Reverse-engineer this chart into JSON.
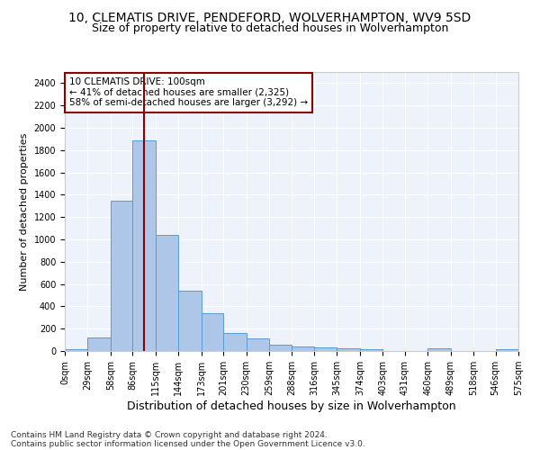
{
  "title1": "10, CLEMATIS DRIVE, PENDEFORD, WOLVERHAMPTON, WV9 5SD",
  "title2": "Size of property relative to detached houses in Wolverhampton",
  "xlabel": "Distribution of detached houses by size in Wolverhampton",
  "ylabel": "Number of detached properties",
  "bar_values": [
    15,
    125,
    1350,
    1890,
    1040,
    540,
    335,
    165,
    110,
    60,
    40,
    30,
    25,
    15,
    0,
    0,
    25,
    0,
    0,
    15
  ],
  "bar_left_edges": [
    0,
    29,
    58,
    86,
    115,
    144,
    173,
    201,
    230,
    259,
    288,
    316,
    345,
    374,
    403,
    431,
    460,
    489,
    518,
    546
  ],
  "bar_widths": [
    29,
    29,
    28,
    29,
    29,
    29,
    28,
    29,
    29,
    29,
    28,
    29,
    29,
    29,
    28,
    29,
    29,
    29,
    28,
    29
  ],
  "xtick_labels": [
    "0sqm",
    "29sqm",
    "58sqm",
    "86sqm",
    "115sqm",
    "144sqm",
    "173sqm",
    "201sqm",
    "230sqm",
    "259sqm",
    "288sqm",
    "316sqm",
    "345sqm",
    "374sqm",
    "403sqm",
    "431sqm",
    "460sqm",
    "489sqm",
    "518sqm",
    "546sqm",
    "575sqm"
  ],
  "xtick_positions": [
    0,
    29,
    58,
    86,
    115,
    144,
    173,
    201,
    230,
    259,
    288,
    316,
    345,
    374,
    403,
    431,
    460,
    489,
    518,
    546,
    575
  ],
  "ytick_labels": [
    "0",
    "200",
    "400",
    "600",
    "800",
    "1000",
    "1200",
    "1400",
    "1600",
    "1800",
    "2000",
    "2200",
    "2400"
  ],
  "ytick_values": [
    0,
    200,
    400,
    600,
    800,
    1000,
    1200,
    1400,
    1600,
    1800,
    2000,
    2200,
    2400
  ],
  "ylim": [
    0,
    2500
  ],
  "xlim": [
    0,
    575
  ],
  "bar_color": "#aec6e8",
  "bar_edge_color": "#5b9bd5",
  "vline_x": 100,
  "vline_color": "#8b0000",
  "annotation_line1": "10 CLEMATIS DRIVE: 100sqm",
  "annotation_line2": "← 41% of detached houses are smaller (2,325)",
  "annotation_line3": "58% of semi-detached houses are larger (3,292) →",
  "annotation_box_color": "#8b0000",
  "bg_color": "#eef2fa",
  "footer1": "Contains HM Land Registry data © Crown copyright and database right 2024.",
  "footer2": "Contains public sector information licensed under the Open Government Licence v3.0.",
  "title1_fontsize": 10,
  "title2_fontsize": 9,
  "xlabel_fontsize": 9,
  "ylabel_fontsize": 8,
  "annotation_fontsize": 7.5,
  "footer_fontsize": 6.5,
  "tick_fontsize": 7
}
